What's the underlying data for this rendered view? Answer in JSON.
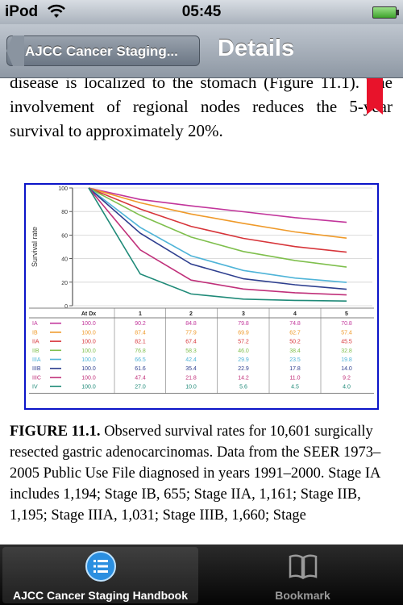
{
  "status_bar": {
    "carrier": "iPod",
    "time": "05:45"
  },
  "nav": {
    "back_label": "AJCC Cancer Staging...",
    "title": "Details"
  },
  "article": {
    "paragraph": "disease is localized to the stomach (Figure 11.1). The involvement of regional nodes reduces the 5-year survival to approximately 20%.",
    "caption_bold": "FIGURE 11.1.",
    "caption_text": " Observed survival rates for 10,601 surgically resected gastric adenocarcinomas. Data from the SEER 1973–2005 Public Use File diagnosed in years 1991–2000. Stage IA includes 1,194; Stage IB, 655; Stage IIA, 1,161; Stage IIB, 1,195; Stage IIIA, 1,031; Stage IIIB, 1,660; Stage"
  },
  "chart_data": {
    "type": "line",
    "ylabel": "Survival rate",
    "y_ticks": [
      0,
      20,
      40,
      60,
      80,
      100
    ],
    "ylim": [
      0,
      100
    ],
    "categories": [
      "At Dx",
      "1",
      "2",
      "3",
      "4",
      "5"
    ],
    "grid": "horizontal",
    "series": [
      {
        "name": "IA",
        "color": "#c2359b",
        "values": [
          100.0,
          90.2,
          84.8,
          79.8,
          74.8,
          70.8
        ]
      },
      {
        "name": "IB",
        "color": "#ef9a2a",
        "values": [
          100.0,
          87.4,
          77.9,
          69.9,
          62.7,
          57.4
        ]
      },
      {
        "name": "IIA",
        "color": "#d7353a",
        "values": [
          100.0,
          82.1,
          67.4,
          57.2,
          50.2,
          45.5
        ]
      },
      {
        "name": "IIB",
        "color": "#7fbf4d",
        "values": [
          100.0,
          76.8,
          58.3,
          46.0,
          38.4,
          32.8
        ]
      },
      {
        "name": "IIIA",
        "color": "#4fb4d8",
        "values": [
          100.0,
          66.5,
          42.4,
          29.9,
          23.5,
          19.8
        ]
      },
      {
        "name": "IIIB",
        "color": "#2e3f8f",
        "values": [
          100.0,
          61.6,
          35.4,
          22.9,
          17.8,
          14.0
        ]
      },
      {
        "name": "IIIC",
        "color": "#c0307a",
        "values": [
          100.0,
          47.4,
          21.8,
          14.2,
          11.0,
          9.2
        ]
      },
      {
        "name": "IV",
        "color": "#1f8a78",
        "values": [
          100.0,
          27.0,
          10.0,
          5.6,
          4.5,
          4.0
        ]
      }
    ]
  },
  "tabs": [
    {
      "label": "AJCC Cancer Staging Handbook",
      "icon": "list-icon",
      "selected": true
    },
    {
      "label": "Bookmark",
      "icon": "book-icon",
      "selected": false
    }
  ]
}
